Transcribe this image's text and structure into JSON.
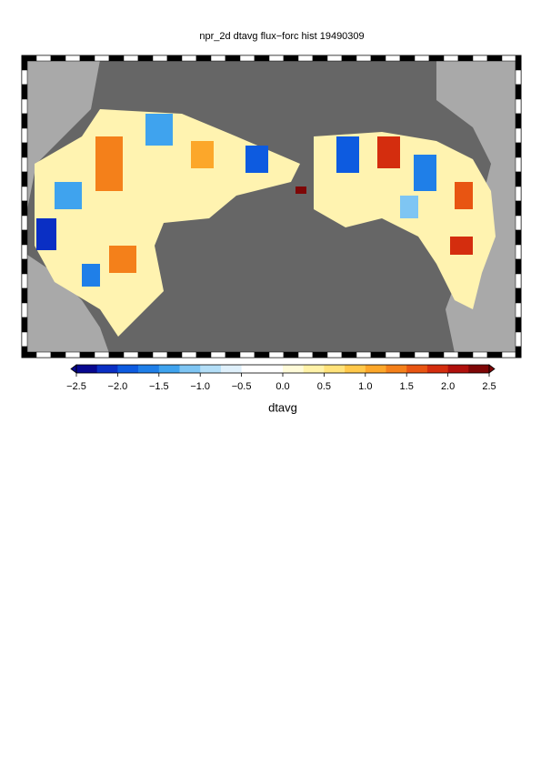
{
  "title": "npr_2d dtavg flux−forc hist 19490309",
  "colorbar": {
    "label": "dtavg",
    "range": [
      -2.5,
      2.5
    ],
    "ticks": [
      {
        "value": -2.5,
        "label": "−2.5"
      },
      {
        "value": -2.0,
        "label": "−2.0"
      },
      {
        "value": -1.5,
        "label": "−1.5"
      },
      {
        "value": -1.0,
        "label": "−1.0"
      },
      {
        "value": -0.5,
        "label": "−0.5"
      },
      {
        "value": 0.0,
        "label": "0.0"
      },
      0.5,
      {
        "value": 1.0,
        "label": "1.0"
      },
      1.5,
      {
        "value": 2.0,
        "label": "2.0"
      },
      2.5
    ],
    "colors": [
      "#08088f",
      "#0a2fc4",
      "#0d5be0",
      "#1f7fe8",
      "#3fa3ee",
      "#7ec5f3",
      "#b3def7",
      "#dff0fb",
      "#ffffff",
      "#ffffff",
      "#fffbd9",
      "#fff2a8",
      "#ffe27a",
      "#ffc84a",
      "#fca72a",
      "#f4801a",
      "#e85512",
      "#d42d0e",
      "#b0100c",
      "#7e0606"
    ]
  }
}
